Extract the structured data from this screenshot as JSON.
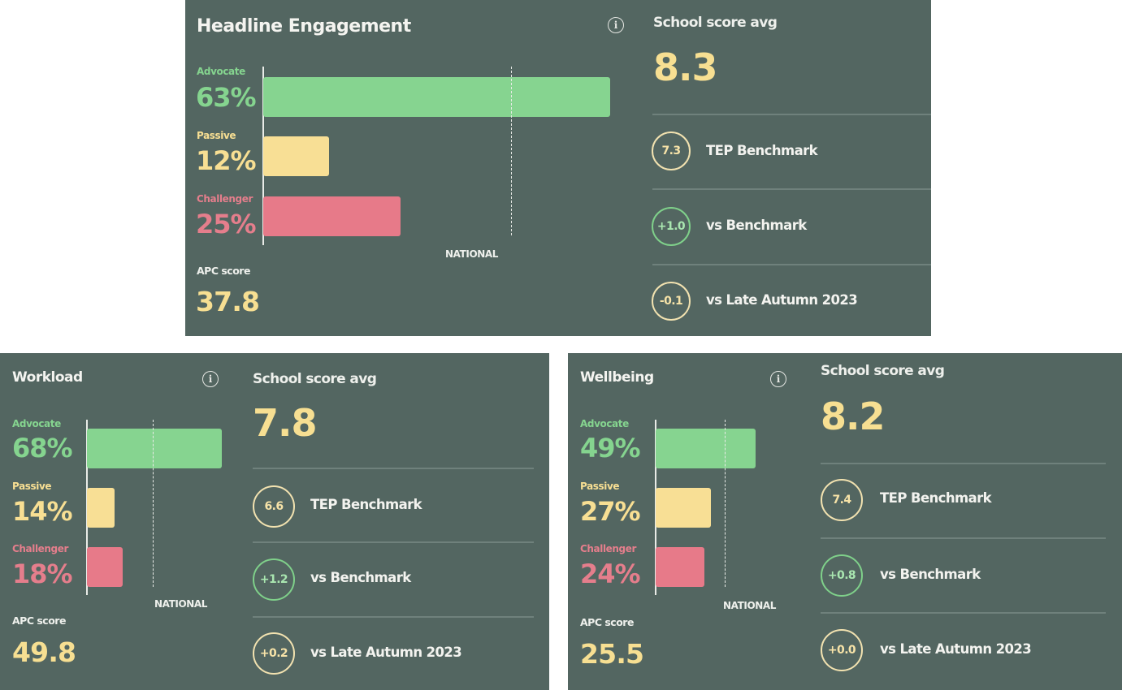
{
  "colors": {
    "advocate": "#86d490",
    "passive": "#f8df95",
    "challenger": "#e77a89",
    "highlight": "#f7df92",
    "circle_neutral": "#f2e2b0",
    "circle_positive": "#7fd08a"
  },
  "panels": [
    {
      "title": "Headline Engagement",
      "info_icon": "info-icon",
      "categories": [
        {
          "label": "Advocate",
          "pct": "63%"
        },
        {
          "label": "Passive",
          "pct": "12%"
        },
        {
          "label": "Challenger",
          "pct": "25%"
        }
      ],
      "national_label": "NATIONAL",
      "apc_label": "APC score",
      "apc_value": "37.8",
      "avg_label": "School score avg",
      "avg_value": "8.3",
      "stats": [
        {
          "value": "7.3",
          "label": "TEP Benchmark",
          "kind": "neutral"
        },
        {
          "value": "+1.0",
          "label": "vs Benchmark",
          "kind": "positive"
        },
        {
          "value": "-0.1",
          "label": "vs Late Autumn 2023",
          "kind": "neutral"
        }
      ]
    },
    {
      "title": "Workload",
      "info_icon": "info-icon",
      "categories": [
        {
          "label": "Advocate",
          "pct": "68%"
        },
        {
          "label": "Passive",
          "pct": "14%"
        },
        {
          "label": "Challenger",
          "pct": "18%"
        }
      ],
      "national_label": "NATIONAL",
      "apc_label": "APC score",
      "apc_value": "49.8",
      "avg_label": "School score avg",
      "avg_value": "7.8",
      "stats": [
        {
          "value": "6.6",
          "label": "TEP Benchmark",
          "kind": "neutral"
        },
        {
          "value": "+1.2",
          "label": "vs Benchmark",
          "kind": "positive"
        },
        {
          "value": "+0.2",
          "label": "vs Late Autumn 2023",
          "kind": "neutral"
        }
      ]
    },
    {
      "title": "Wellbeing",
      "info_icon": "info-icon",
      "categories": [
        {
          "label": "Advocate",
          "pct": "49%"
        },
        {
          "label": "Passive",
          "pct": "27%"
        },
        {
          "label": "Challenger",
          "pct": "24%"
        }
      ],
      "national_label": "NATIONAL",
      "apc_label": "APC score",
      "apc_value": "25.5",
      "avg_label": "School score avg",
      "avg_value": "8.2",
      "stats": [
        {
          "value": "7.4",
          "label": "TEP Benchmark",
          "kind": "neutral"
        },
        {
          "value": "+0.8",
          "label": "vs Benchmark",
          "kind": "positive"
        },
        {
          "value": "+0.0",
          "label": "vs Late Autumn 2023",
          "kind": "neutral"
        }
      ]
    }
  ],
  "chart_data": [
    {
      "type": "bar",
      "title": "Headline Engagement",
      "orientation": "horizontal",
      "categories": [
        "Advocate",
        "Passive",
        "Challenger"
      ],
      "values": [
        63,
        12,
        25
      ],
      "reference_line": {
        "label": "NATIONAL",
        "value": 45
      },
      "grid": false
    },
    {
      "type": "bar",
      "title": "Workload",
      "orientation": "horizontal",
      "categories": [
        "Advocate",
        "Passive",
        "Challenger"
      ],
      "values": [
        68,
        14,
        18
      ],
      "reference_line": {
        "label": "NATIONAL",
        "value": 33
      },
      "grid": false
    },
    {
      "type": "bar",
      "title": "Wellbeing",
      "orientation": "horizontal",
      "categories": [
        "Advocate",
        "Passive",
        "Challenger"
      ],
      "values": [
        49,
        27,
        24
      ],
      "reference_line": {
        "label": "NATIONAL",
        "value": 34
      },
      "grid": false
    }
  ]
}
